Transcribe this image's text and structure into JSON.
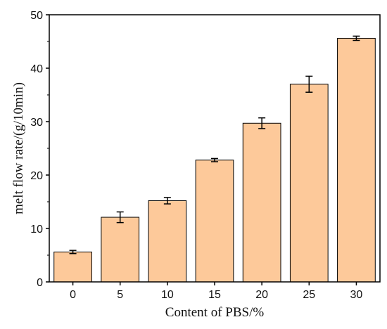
{
  "chart_data": {
    "type": "bar",
    "xlabel": "Content of PBS/%",
    "ylabel": "melt flow rate/(g/10min)",
    "categories": [
      "0",
      "5",
      "10",
      "15",
      "20",
      "25",
      "30"
    ],
    "values": [
      5.6,
      12.1,
      15.2,
      22.8,
      29.7,
      37.0,
      45.6
    ],
    "errors": [
      0.3,
      1.0,
      0.6,
      0.3,
      1.0,
      1.5,
      0.4
    ],
    "ylim": [
      0,
      50
    ],
    "yticks": [
      0,
      10,
      20,
      30,
      40,
      50
    ],
    "bar_color": "#fdc99a",
    "bar_edge_color": "#000000",
    "grid": false,
    "legend": "none"
  }
}
